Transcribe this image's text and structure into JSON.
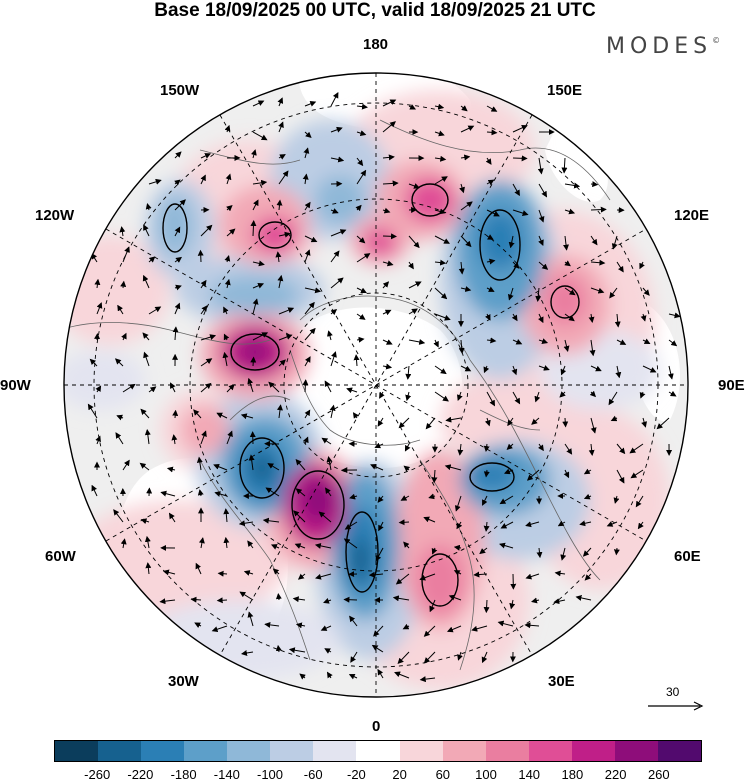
{
  "header": {
    "title": "Base 18/09/2025 00 UTC, valid 18/09/2025 21 UTC",
    "logo": "MODES",
    "logo_mark": "©"
  },
  "map": {
    "projection": "north-polar-stereographic",
    "longitude_labels": {
      "lon_180": "180",
      "lon_150e": "150E",
      "lon_120e": "120E",
      "lon_90e": "90E",
      "lon_60e": "60E",
      "lon_30e": "30E",
      "lon_0": "0",
      "lon_30w": "30W",
      "lon_60w": "60W",
      "lon_90w": "90W",
      "lon_120w": "120W",
      "lon_150w": "150W"
    },
    "vector_reference": {
      "label": "30"
    }
  },
  "colorbar": {
    "colors": [
      "#0b3d5c",
      "#16618f",
      "#2b7fb5",
      "#5d9fc9",
      "#8fb8d8",
      "#bccde4",
      "#e3e4f0",
      "#ffffff",
      "#f8d6da",
      "#f2a9b6",
      "#ea7ea0",
      "#e04e96",
      "#c01f88",
      "#8e0d7a",
      "#520a6e"
    ],
    "tick_labels": [
      "-260",
      "-220",
      "-180",
      "-140",
      "-100",
      "-60",
      "-20",
      "20",
      "60",
      "100",
      "140",
      "180",
      "220",
      "260"
    ]
  }
}
